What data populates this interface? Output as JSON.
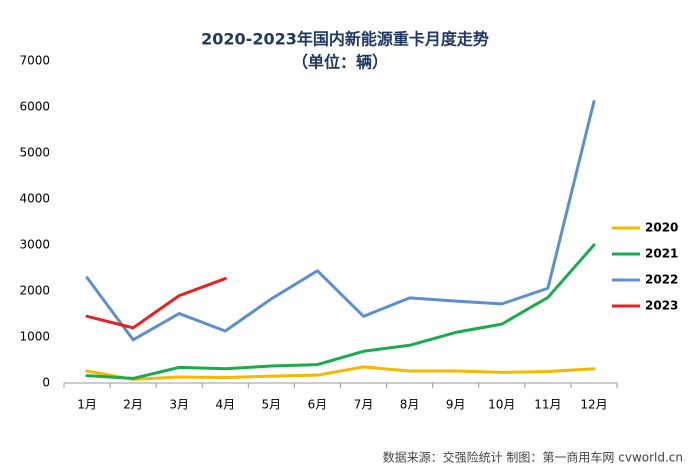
{
  "chart_data": {
    "type": "line",
    "title": "2020-2023年国内新能源重卡月度走势",
    "subtitle": "（单位：辆）",
    "categories": [
      "1月",
      "2月",
      "3月",
      "4月",
      "5月",
      "6月",
      "7月",
      "8月",
      "9月",
      "10月",
      "11月",
      "12月"
    ],
    "series": [
      {
        "name": "2020",
        "color": "#f5b800",
        "values": [
          260,
          80,
          130,
          120,
          150,
          170,
          350,
          260,
          260,
          230,
          250,
          310
        ]
      },
      {
        "name": "2021",
        "color": "#1aab4b",
        "values": [
          160,
          100,
          340,
          310,
          370,
          400,
          690,
          820,
          1100,
          1280,
          1860,
          3000
        ]
      },
      {
        "name": "2022",
        "color": "#5b8fd1",
        "values": [
          2290,
          940,
          1510,
          1130,
          1830,
          2440,
          1450,
          1850,
          1780,
          1720,
          2060,
          6120
        ]
      },
      {
        "name": "2023",
        "color": "#e8201f",
        "values": [
          1450,
          1200,
          1900,
          2270,
          null,
          null,
          null,
          null,
          null,
          null,
          null,
          null
        ]
      }
    ],
    "ylim": [
      0,
      7000
    ],
    "yticks": [
      0,
      1000,
      2000,
      3000,
      4000,
      5000,
      6000,
      7000
    ],
    "grid": false,
    "legend": "right",
    "source": "数据来源：交强险统计   制图：第一商用车网 cvworld.cn"
  }
}
